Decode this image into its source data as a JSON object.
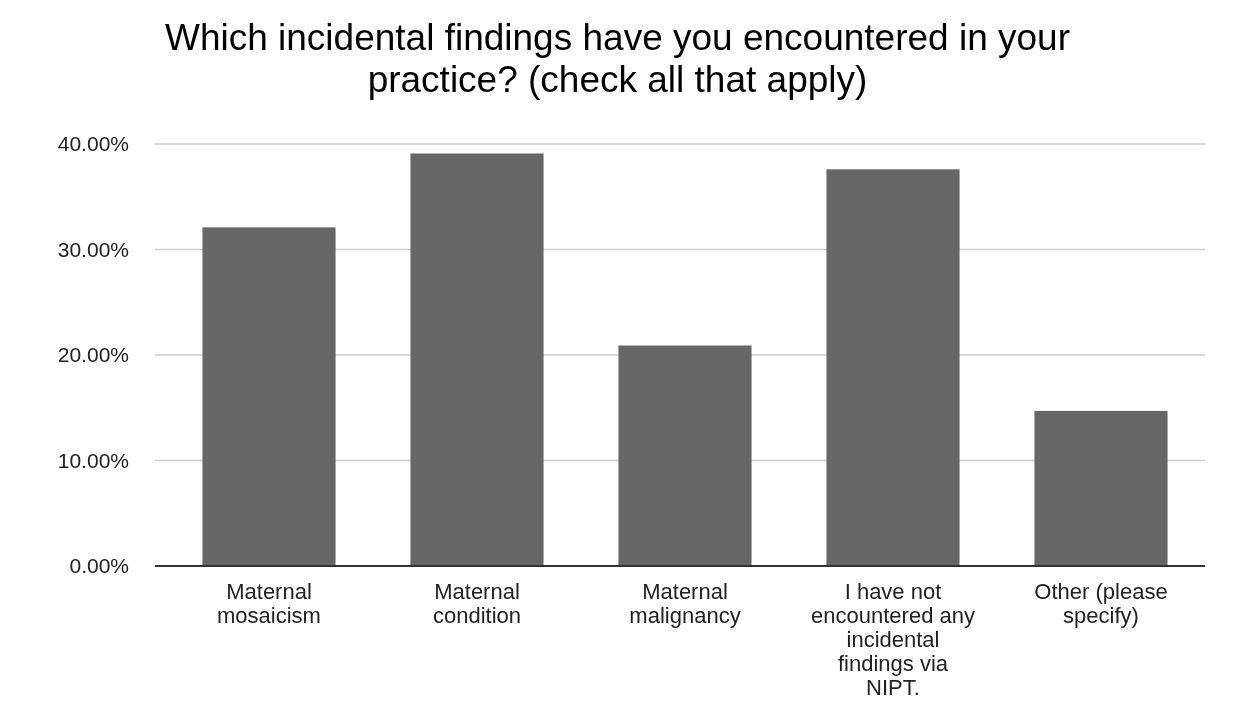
{
  "chart_data": {
    "type": "bar",
    "title": "Which incidental findings have you encountered in your practice? (check all that apply)",
    "categories": [
      "Maternal mosaicism",
      "Maternal condition",
      "Maternal malignancy",
      "I have not encountered any incidental findings via NIPT.",
      "Other (please specify)"
    ],
    "values": [
      32.1,
      39.1,
      20.9,
      37.6,
      14.7
    ],
    "color": "#666666",
    "ylim": [
      0,
      40
    ],
    "yticks": [
      {
        "value": 0,
        "label": "0.00%"
      },
      {
        "value": 10,
        "label": "10.00%"
      },
      {
        "value": 20,
        "label": "20.00%"
      },
      {
        "value": 30,
        "label": "30.00%"
      },
      {
        "value": 40,
        "label": "40.00%"
      }
    ],
    "grid": "y"
  }
}
